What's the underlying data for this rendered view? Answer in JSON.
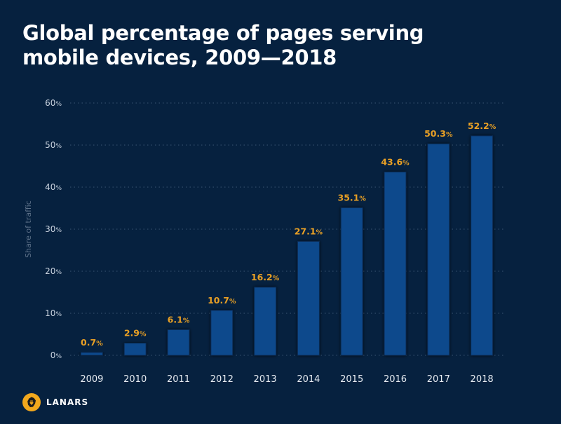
{
  "header": {
    "title_line1": "Global percentage of pages serving",
    "title_line2": "mobile devices, 2009—2018"
  },
  "brand": {
    "name": "LANARS",
    "accent": "#f2a81d"
  },
  "colors": {
    "background": "#06213f",
    "bar": "#0b4a8c",
    "data_label": "#e8a025"
  },
  "chart_data": {
    "type": "bar",
    "title": "Global percentage of pages serving mobile devices, 2009—2018",
    "xlabel": "",
    "ylabel": "Share of traffic",
    "categories": [
      "2009",
      "2010",
      "2011",
      "2012",
      "2013",
      "2014",
      "2015",
      "2016",
      "2017",
      "2018"
    ],
    "values": [
      0.7,
      2.9,
      6.1,
      10.7,
      16.2,
      27.1,
      35.1,
      43.6,
      50.3,
      52.2
    ],
    "data_labels": [
      "0.7",
      "2.9",
      "6.1",
      "10.7",
      "16.2",
      "27.1",
      "35.1",
      "43.6",
      "50.3",
      "52.2"
    ],
    "unit": "%",
    "ylim": [
      0,
      60
    ],
    "yticks": [
      0,
      10,
      20,
      30,
      40,
      50,
      60
    ],
    "ytick_labels": [
      "0",
      "10",
      "20",
      "30",
      "40",
      "50",
      "60"
    ],
    "grid": true,
    "legend": "none"
  }
}
